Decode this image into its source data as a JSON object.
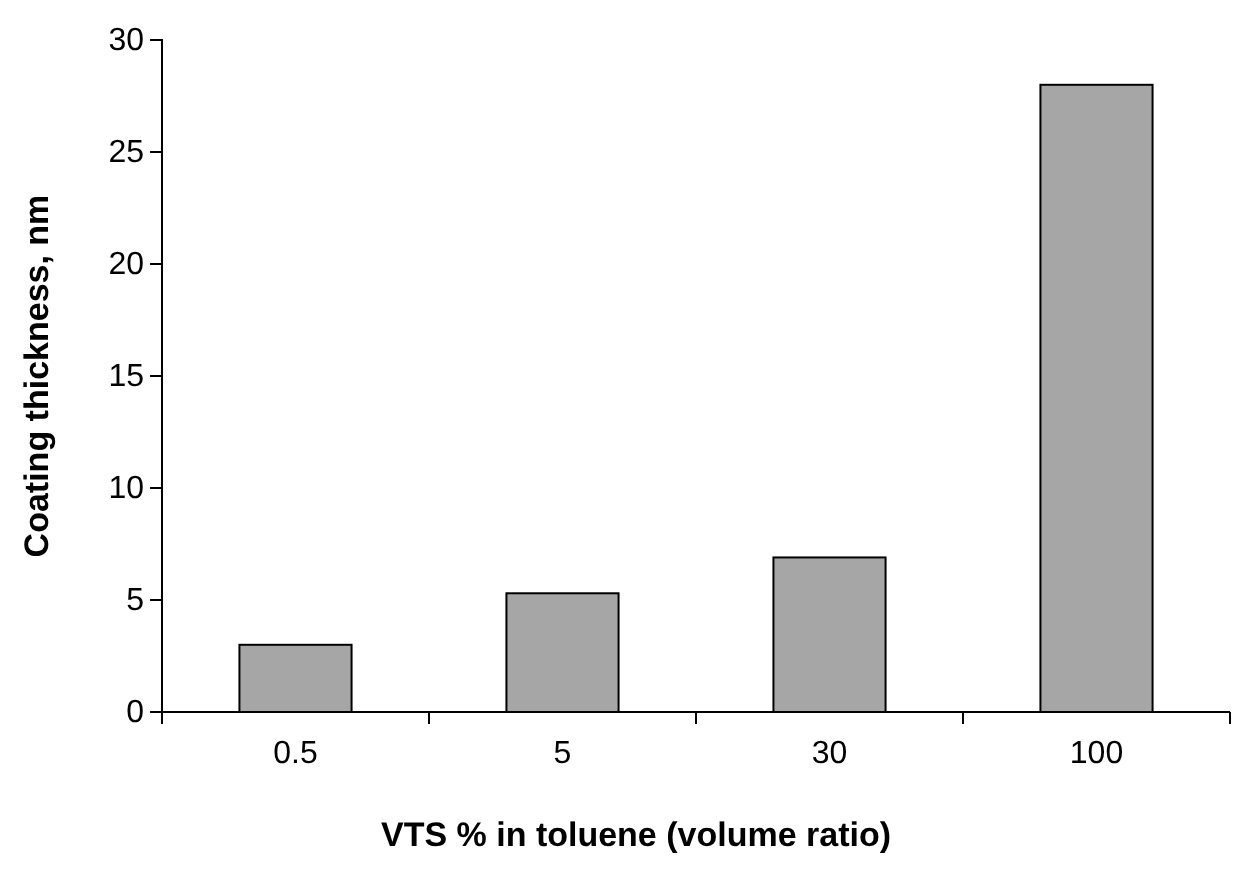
{
  "chart_data": {
    "type": "bar",
    "xlabel": "VTS % in toluene (volume ratio)",
    "ylabel": "Coating thickness, nm",
    "categories": [
      "0.5",
      "5",
      "30",
      "100"
    ],
    "values": [
      3,
      5.3,
      6.9,
      28
    ],
    "color": "#a6a6a6",
    "ylim": [
      0,
      30
    ],
    "yticks": [
      0,
      5,
      10,
      15,
      20,
      25,
      30
    ],
    "grid": false
  }
}
